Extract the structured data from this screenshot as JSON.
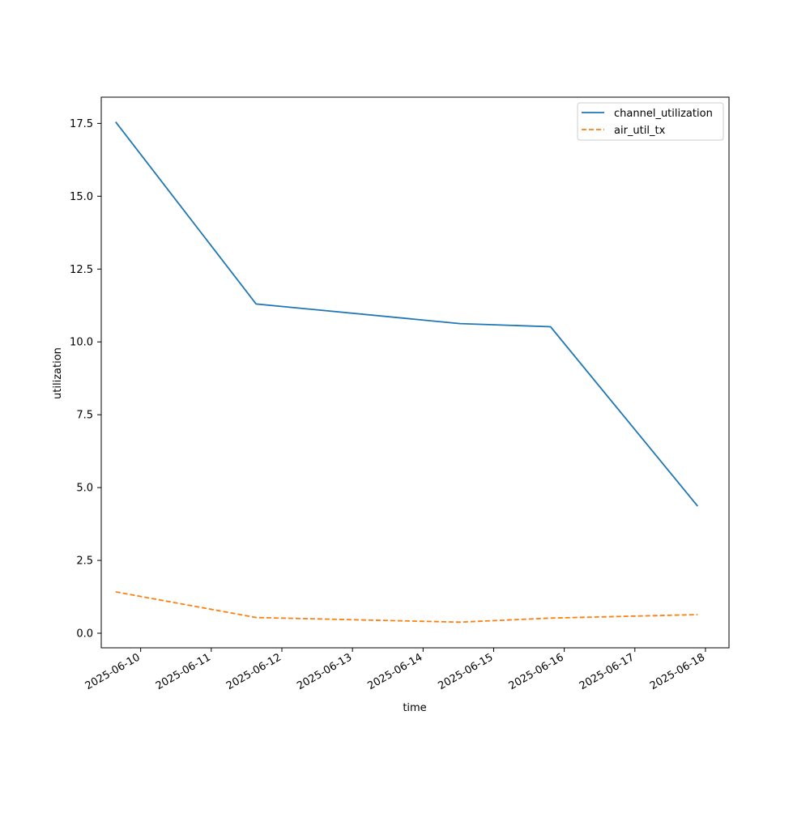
{
  "chart_data": {
    "type": "line",
    "title": "",
    "xlabel": "time",
    "ylabel": "utilization",
    "x_tick_labels": [
      "2025-06-10",
      "2025-06-11",
      "2025-06-12",
      "2025-06-13",
      "2025-06-14",
      "2025-06-15",
      "2025-06-16",
      "2025-06-17",
      "2025-06-18"
    ],
    "y_tick_labels": [
      "0.0",
      "2.5",
      "5.0",
      "7.5",
      "10.0",
      "12.5",
      "15.0",
      "17.5"
    ],
    "xlim": [
      "2025-06-09 10:36",
      "2025-06-18 08:00"
    ],
    "ylim": [
      -0.5,
      18.4
    ],
    "grid": false,
    "legend_position": "upper right",
    "series": [
      {
        "name": "channel_utilization",
        "color": "#1f77b4",
        "linestyle": "solid",
        "points": [
          {
            "x": "2025-06-09 15:30",
            "y": 17.55
          },
          {
            "x": "2025-06-11 15:15",
            "y": 11.3
          },
          {
            "x": "2025-06-14 12:30",
            "y": 10.63
          },
          {
            "x": "2025-06-15 19:20",
            "y": 10.52
          },
          {
            "x": "2025-06-17 21:20",
            "y": 4.36
          }
        ]
      },
      {
        "name": "air_util_tx",
        "color": "#ff7f0e",
        "linestyle": "dashed",
        "points": [
          {
            "x": "2025-06-09 15:30",
            "y": 1.42
          },
          {
            "x": "2025-06-11 15:15",
            "y": 0.54
          },
          {
            "x": "2025-06-14 12:30",
            "y": 0.38
          },
          {
            "x": "2025-06-15 19:20",
            "y": 0.52
          },
          {
            "x": "2025-06-17 21:20",
            "y": 0.64
          }
        ]
      }
    ]
  }
}
